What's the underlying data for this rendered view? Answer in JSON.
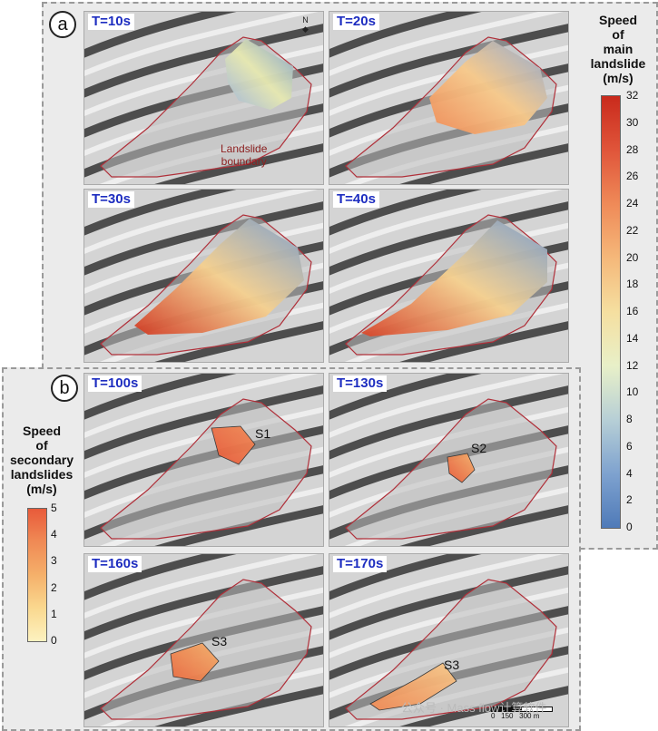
{
  "group_a": {
    "letter": "a"
  },
  "group_b": {
    "letter": "b"
  },
  "panels": [
    {
      "time": "T=10s"
    },
    {
      "time": "T=20s"
    },
    {
      "time": "T=30s"
    },
    {
      "time": "T=40s"
    },
    {
      "time": "T=100s",
      "label": "S1"
    },
    {
      "time": "T=130s",
      "label": "S2"
    },
    {
      "time": "T=160s",
      "label": "S3"
    },
    {
      "time": "T=170s",
      "label": "S3"
    }
  ],
  "boundary_label": "Landslide\nboundary",
  "main_legend": {
    "title": "Speed\nof\nmain\nlandslide\n(m/s)",
    "ticks": [
      "32",
      "30",
      "28",
      "26",
      "24",
      "22",
      "20",
      "18",
      "16",
      "14",
      "12",
      "10",
      "8",
      "6",
      "4",
      "2",
      "0"
    ],
    "colors": [
      "#c92a1c",
      "#e0553a",
      "#ef8a58",
      "#f5b87a",
      "#f5dfa0",
      "#e8f0c8",
      "#b7cfd6",
      "#7ea2cf",
      "#4f7ab8"
    ]
  },
  "secondary_legend": {
    "title": "Speed\nof\nsecondary\nlandslides\n(m/s)",
    "ticks": [
      "5",
      "4",
      "3",
      "2",
      "1",
      "0"
    ],
    "colors": [
      "#e85a3a",
      "#f08a55",
      "#f5b06a",
      "#fad88f",
      "#fdf2c0"
    ]
  },
  "north_arrow": "N",
  "scale_bar": {
    "ticks": [
      "0",
      "150",
      "300"
    ],
    "unit": "m"
  },
  "watermark": "公众号 · Mass flow计算软件"
}
